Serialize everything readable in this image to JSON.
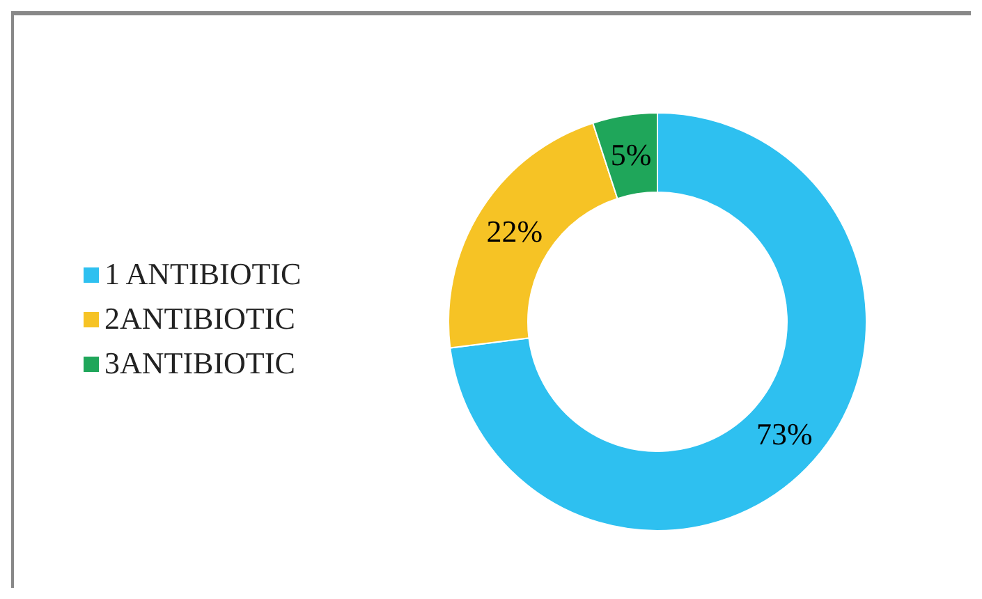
{
  "chart_data": {
    "type": "donut",
    "categories": [
      "1 ANTIBIOTIC",
      "2ANTIBIOTIC",
      "3ANTIBIOTIC"
    ],
    "values": [
      73,
      22,
      5
    ],
    "colors": [
      "#2ec0f0",
      "#f6c325",
      "#1fa65a"
    ],
    "value_labels": [
      "73%",
      "22%",
      "5%"
    ],
    "legend": "left"
  }
}
